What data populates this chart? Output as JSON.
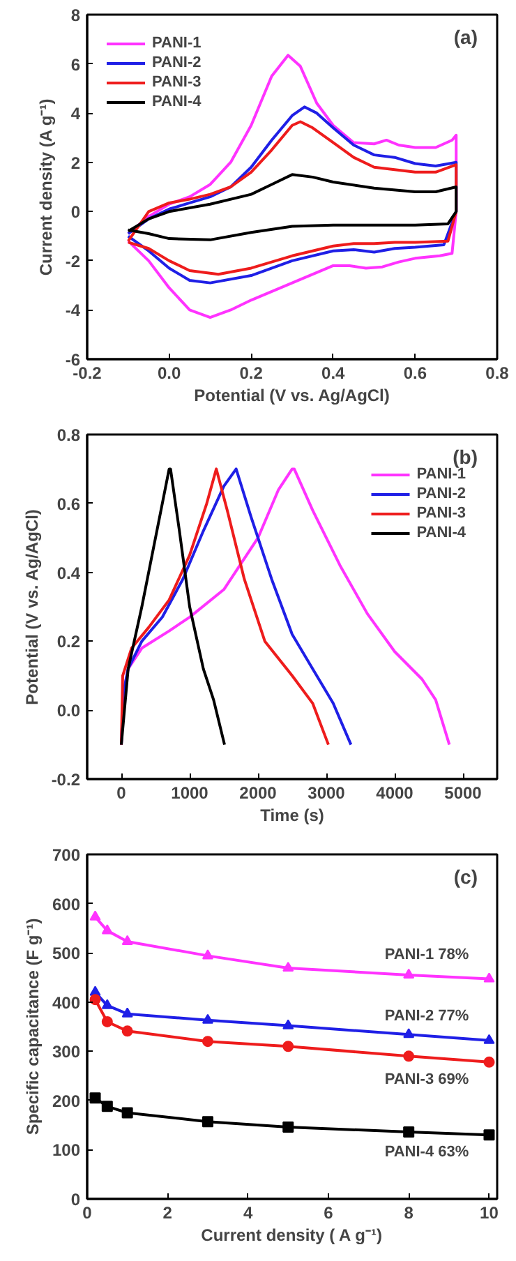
{
  "chart_data": [
    {
      "type": "line",
      "xlabel": "Potential (V vs. Ag/AgCl)",
      "ylabel": "Current density (A g⁻¹)",
      "annotations": [
        "(a)"
      ],
      "xlim": [
        -0.2,
        0.8
      ],
      "ylim": [
        -6,
        8
      ],
      "xticks": [
        -0.2,
        {
          "value": 0,
          "label": "0.0"
        },
        0.2,
        0.4,
        0.6,
        0.8
      ],
      "yticks": [
        -6,
        -4,
        -2,
        0,
        2,
        4,
        6,
        8
      ],
      "grid": false,
      "legend": "top left",
      "line_style": "solid",
      "marker": "none",
      "series": [
        {
          "name": "PANI-1",
          "color": "#ff33ff",
          "x": [
            -0.1,
            -0.05,
            0.0,
            0.05,
            0.1,
            0.15,
            0.2,
            0.25,
            0.29,
            0.32,
            0.36,
            0.4,
            0.45,
            0.5,
            0.53,
            0.56,
            0.6,
            0.65,
            0.69,
            0.7,
            0.7,
            0.69,
            0.66,
            0.6,
            0.56,
            0.52,
            0.48,
            0.44,
            0.4,
            0.3,
            0.2,
            0.15,
            0.1,
            0.05,
            0.0,
            -0.05,
            -0.1
          ],
          "values": [
            -0.9,
            -0.2,
            0.3,
            0.6,
            1.1,
            2.0,
            3.5,
            5.5,
            6.35,
            5.9,
            4.4,
            3.5,
            2.8,
            2.75,
            2.9,
            2.7,
            2.6,
            2.6,
            2.9,
            3.1,
            0,
            -1.7,
            -1.8,
            -1.9,
            -2.05,
            -2.25,
            -2.3,
            -2.2,
            -2.2,
            -2.9,
            -3.6,
            -4.0,
            -4.3,
            -4.0,
            -3.1,
            -2.0,
            -1.2
          ]
        },
        {
          "name": "PANI-2",
          "color": "#1f1fe6",
          "x": [
            -0.1,
            -0.05,
            0.0,
            0.05,
            0.1,
            0.15,
            0.2,
            0.25,
            0.3,
            0.33,
            0.36,
            0.4,
            0.45,
            0.5,
            0.55,
            0.6,
            0.65,
            0.7,
            0.7,
            0.67,
            0.6,
            0.55,
            0.5,
            0.45,
            0.4,
            0.3,
            0.2,
            0.1,
            0.05,
            0.0,
            -0.05,
            -0.1
          ],
          "values": [
            -0.9,
            -0.3,
            0.1,
            0.35,
            0.6,
            1.0,
            1.8,
            2.9,
            3.9,
            4.25,
            4.0,
            3.4,
            2.7,
            2.3,
            2.2,
            1.95,
            1.85,
            2.0,
            0,
            -1.35,
            -1.45,
            -1.5,
            -1.65,
            -1.55,
            -1.6,
            -2.0,
            -2.6,
            -2.9,
            -2.8,
            -2.3,
            -1.6,
            -1.0
          ]
        },
        {
          "name": "PANI-3",
          "color": "#ee1c1c",
          "x": [
            -0.1,
            -0.05,
            0.0,
            0.05,
            0.1,
            0.15,
            0.2,
            0.25,
            0.3,
            0.32,
            0.35,
            0.4,
            0.45,
            0.5,
            0.55,
            0.6,
            0.65,
            0.7,
            0.7,
            0.68,
            0.6,
            0.55,
            0.5,
            0.45,
            0.4,
            0.3,
            0.2,
            0.12,
            0.05,
            0.0,
            -0.05,
            -0.1
          ],
          "values": [
            -1.2,
            0.0,
            0.35,
            0.5,
            0.7,
            1.0,
            1.6,
            2.5,
            3.5,
            3.65,
            3.4,
            2.8,
            2.2,
            1.8,
            1.7,
            1.6,
            1.6,
            1.9,
            0,
            -1.2,
            -1.25,
            -1.25,
            -1.3,
            -1.3,
            -1.4,
            -1.8,
            -2.3,
            -2.55,
            -2.4,
            -2.0,
            -1.5,
            -1.25
          ]
        },
        {
          "name": "PANI-4",
          "color": "#000000",
          "x": [
            -0.1,
            -0.05,
            0.0,
            0.1,
            0.2,
            0.25,
            0.3,
            0.35,
            0.4,
            0.5,
            0.6,
            0.65,
            0.7,
            0.7,
            0.68,
            0.6,
            0.5,
            0.4,
            0.3,
            0.2,
            0.1,
            0.0,
            -0.05,
            -0.1
          ],
          "values": [
            -0.8,
            -0.3,
            0.0,
            0.3,
            0.7,
            1.1,
            1.5,
            1.4,
            1.2,
            0.95,
            0.8,
            0.8,
            1.0,
            0,
            -0.5,
            -0.55,
            -0.55,
            -0.55,
            -0.6,
            -0.85,
            -1.15,
            -1.1,
            -0.9,
            -0.75
          ]
        }
      ]
    },
    {
      "type": "line",
      "xlabel": "Time (s)",
      "ylabel": "Potential (V vs. Ag/AgCl)",
      "annotations": [
        "(b)"
      ],
      "xlim": [
        -500,
        5500
      ],
      "ylim": [
        -0.2,
        0.8
      ],
      "xticks": [
        0,
        1000,
        2000,
        3000,
        4000,
        5000
      ],
      "yticks": [
        -0.2,
        {
          "value": 0,
          "label": "0.0"
        },
        0.2,
        0.4,
        0.6,
        0.8
      ],
      "grid": false,
      "legend": "top right",
      "line_style": "solid",
      "marker": "none",
      "series": [
        {
          "name": "PANI-1",
          "color": "#ff33ff",
          "x": [
            0,
            30,
            100,
            300,
            700,
            1000,
            1500,
            2000,
            2300,
            2500,
            2530,
            2800,
            3200,
            3600,
            4000,
            4400,
            4600,
            4800
          ],
          "values": [
            -0.1,
            0.05,
            0.12,
            0.18,
            0.23,
            0.27,
            0.35,
            0.5,
            0.64,
            0.7,
            0.7,
            0.58,
            0.42,
            0.28,
            0.17,
            0.09,
            0.03,
            -0.1
          ]
        },
        {
          "name": "PANI-2",
          "color": "#1f1fe6",
          "x": [
            0,
            30,
            100,
            300,
            600,
            900,
            1200,
            1500,
            1680,
            1900,
            2200,
            2500,
            2800,
            3100,
            3360
          ],
          "values": [
            -0.1,
            0.05,
            0.12,
            0.2,
            0.27,
            0.38,
            0.52,
            0.65,
            0.7,
            0.56,
            0.38,
            0.22,
            0.12,
            0.02,
            -0.1
          ]
        },
        {
          "name": "PANI-3",
          "color": "#ee1c1c",
          "x": [
            0,
            20,
            150,
            400,
            700,
            1000,
            1250,
            1390,
            1550,
            1800,
            2100,
            2500,
            2800,
            3030
          ],
          "values": [
            -0.1,
            0.1,
            0.18,
            0.24,
            0.32,
            0.45,
            0.6,
            0.7,
            0.58,
            0.38,
            0.2,
            0.1,
            0.02,
            -0.1
          ]
        },
        {
          "name": "PANI-4",
          "color": "#000000",
          "x": [
            0,
            100,
            300,
            500,
            700,
            720,
            850,
            1000,
            1200,
            1350,
            1510
          ],
          "values": [
            -0.1,
            0.12,
            0.3,
            0.5,
            0.7,
            0.7,
            0.52,
            0.3,
            0.12,
            0.03,
            -0.1
          ]
        }
      ]
    },
    {
      "type": "line",
      "xlabel": "Current density ( A g⁻¹)",
      "ylabel": "Specific capacitance (F g⁻¹)",
      "xlim": [
        0,
        10.2
      ],
      "ylim": [
        0,
        700
      ],
      "xticks": [
        0,
        2,
        4,
        6,
        8,
        10
      ],
      "yticks": [
        0,
        100,
        200,
        300,
        400,
        500,
        600,
        700
      ],
      "grid": false,
      "legend": false,
      "line_style": "solid",
      "annotations": [
        "(c)",
        "PANI-1  78%",
        "PANI-2  77%",
        "PANI-3  69%",
        "PANI-4  63%"
      ],
      "series": [
        {
          "color": "#ff33ff",
          "marker": "triangle",
          "x": [
            0.2,
            0.5,
            1,
            3,
            5,
            8,
            10
          ],
          "values": [
            573,
            545,
            523,
            494,
            469,
            455,
            447
          ]
        },
        {
          "color": "#1f1fe6",
          "marker": "triangle",
          "x": [
            0.2,
            0.5,
            1,
            3,
            5,
            8,
            10
          ],
          "values": [
            420,
            393,
            376,
            363,
            352,
            334,
            322
          ]
        },
        {
          "color": "#ee1c1c",
          "marker": "circle",
          "x": [
            0.2,
            0.5,
            1,
            3,
            5,
            8,
            10
          ],
          "values": [
            405,
            360,
            341,
            320,
            310,
            290,
            278
          ]
        },
        {
          "color": "#000000",
          "marker": "square",
          "x": [
            0.2,
            0.5,
            1,
            3,
            5,
            8,
            10
          ],
          "values": [
            205,
            188,
            175,
            157,
            146,
            136,
            130
          ]
        }
      ]
    }
  ]
}
